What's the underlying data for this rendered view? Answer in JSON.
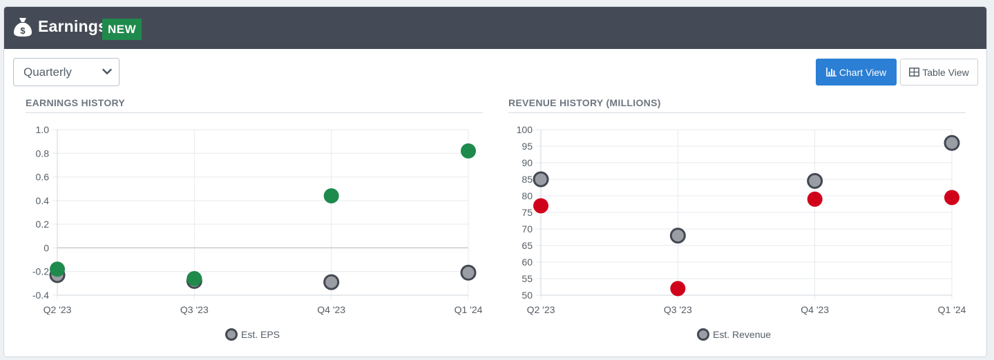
{
  "header": {
    "title": "Earnings",
    "badge": "NEW",
    "icon": "money-bag-icon"
  },
  "controls": {
    "period_select": {
      "value": "Quarterly",
      "options": [
        "Quarterly"
      ]
    },
    "chart_view_label": "Chart View",
    "table_view_label": "Table View",
    "active_view": "chart"
  },
  "colors": {
    "header_bg": "#454b56",
    "badge_bg": "#1e8a4c",
    "primary": "#2b7fd4",
    "beat": "#1e8a4c",
    "miss": "#d0021b",
    "estimate_fill": "#9a9ea4",
    "estimate_stroke": "#434852"
  },
  "chart_data": [
    {
      "type": "scatter",
      "title": "EARNINGS HISTORY",
      "categories": [
        "Q2 '23",
        "Q3 '23",
        "Q4 '23",
        "Q1 '24"
      ],
      "ylim": [
        -0.4,
        1.0
      ],
      "yticks": [
        "1.0",
        "0.8",
        "0.6",
        "0.4",
        "0.2",
        "0",
        "-0.2",
        "-0.4"
      ],
      "ytick_values": [
        1.0,
        0.8,
        0.6,
        0.4,
        0.2,
        0,
        -0.2,
        -0.4
      ],
      "zero_line": true,
      "legend": "Est. EPS",
      "series": [
        {
          "role": "estimate",
          "values": [
            -0.23,
            -0.28,
            -0.29,
            -0.21
          ]
        },
        {
          "role": "actual",
          "values": [
            -0.18,
            -0.26,
            0.44,
            0.82
          ],
          "colors": [
            "#1e8a4c",
            "#1e8a4c",
            "#1e8a4c",
            "#1e8a4c"
          ]
        }
      ]
    },
    {
      "type": "scatter",
      "title": "REVENUE HISTORY (MILLIONS)",
      "categories": [
        "Q2 '23",
        "Q3 '23",
        "Q4 '23",
        "Q1 '24"
      ],
      "ylim": [
        50,
        100
      ],
      "yticks": [
        "100",
        "95",
        "90",
        "85",
        "80",
        "75",
        "70",
        "65",
        "60",
        "55",
        "50"
      ],
      "ytick_values": [
        100,
        95,
        90,
        85,
        80,
        75,
        70,
        65,
        60,
        55,
        50
      ],
      "zero_line": false,
      "legend": "Est. Revenue",
      "series": [
        {
          "role": "estimate",
          "values": [
            85,
            68,
            84.5,
            96
          ]
        },
        {
          "role": "actual",
          "values": [
            77,
            52,
            79,
            79.5
          ],
          "colors": [
            "#d0021b",
            "#d0021b",
            "#d0021b",
            "#d0021b"
          ]
        }
      ]
    }
  ]
}
